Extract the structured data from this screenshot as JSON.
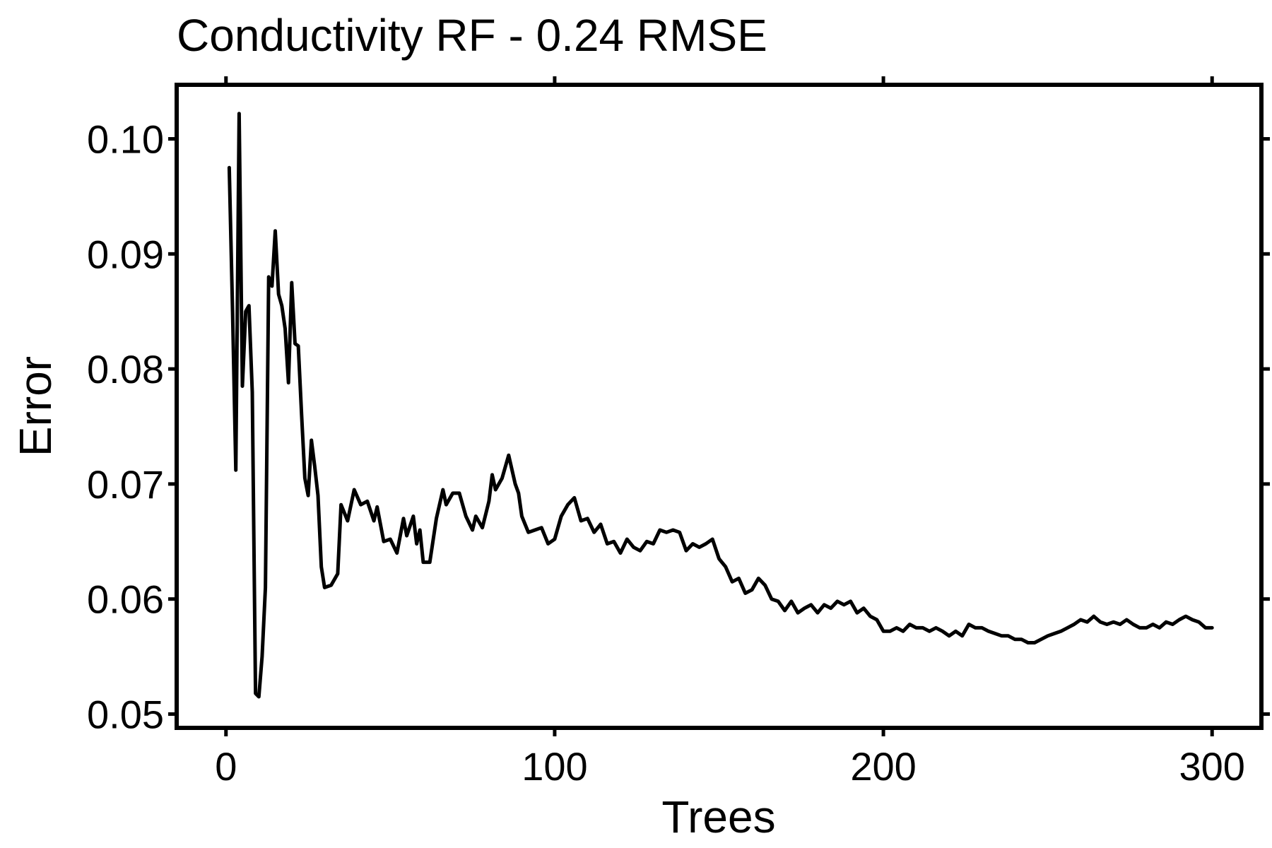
{
  "chart_data": {
    "type": "line",
    "title": "Conductivity RF - 0.24 RMSE",
    "xlabel": "Trees",
    "ylabel": "Error",
    "xlim": [
      -15,
      315
    ],
    "ylim": [
      0.0488,
      0.1047
    ],
    "x_ticks": [
      0,
      100,
      200,
      300
    ],
    "x_tick_labels": [
      "0",
      "100",
      "200",
      "300"
    ],
    "y_ticks": [
      0.05,
      0.06,
      0.07,
      0.08,
      0.09,
      0.1
    ],
    "y_tick_labels": [
      "0.05",
      "0.06",
      "0.07",
      "0.08",
      "0.09",
      "0.10"
    ],
    "grid": false,
    "series": [
      {
        "color": "#000000",
        "points": [
          [
            1,
            0.0975
          ],
          [
            2,
            0.085
          ],
          [
            3,
            0.0712
          ],
          [
            4,
            0.1022
          ],
          [
            5,
            0.0785
          ],
          [
            6,
            0.085
          ],
          [
            7,
            0.0855
          ],
          [
            8,
            0.078
          ],
          [
            9,
            0.0518
          ],
          [
            10,
            0.0515
          ],
          [
            11,
            0.055
          ],
          [
            12,
            0.061
          ],
          [
            13,
            0.088
          ],
          [
            14,
            0.0872
          ],
          [
            15,
            0.092
          ],
          [
            16,
            0.0865
          ],
          [
            17,
            0.0855
          ],
          [
            18,
            0.0835
          ],
          [
            19,
            0.0788
          ],
          [
            20,
            0.0875
          ],
          [
            21,
            0.0822
          ],
          [
            22,
            0.082
          ],
          [
            23,
            0.076
          ],
          [
            24,
            0.0705
          ],
          [
            25,
            0.069
          ],
          [
            26,
            0.0738
          ],
          [
            27,
            0.0715
          ],
          [
            28,
            0.069
          ],
          [
            29,
            0.0628
          ],
          [
            30,
            0.061
          ],
          [
            32,
            0.0612
          ],
          [
            34,
            0.0622
          ],
          [
            35,
            0.0682
          ],
          [
            37,
            0.0668
          ],
          [
            39,
            0.0695
          ],
          [
            41,
            0.0682
          ],
          [
            43,
            0.0685
          ],
          [
            45,
            0.0668
          ],
          [
            46,
            0.068
          ],
          [
            48,
            0.065
          ],
          [
            50,
            0.0652
          ],
          [
            52,
            0.064
          ],
          [
            54,
            0.067
          ],
          [
            55,
            0.0655
          ],
          [
            57,
            0.0672
          ],
          [
            58,
            0.0648
          ],
          [
            59,
            0.066
          ],
          [
            60,
            0.0632
          ],
          [
            62,
            0.0632
          ],
          [
            64,
            0.067
          ],
          [
            66,
            0.0695
          ],
          [
            67,
            0.0682
          ],
          [
            69,
            0.0692
          ],
          [
            71,
            0.0692
          ],
          [
            73,
            0.0672
          ],
          [
            75,
            0.066
          ],
          [
            76,
            0.0672
          ],
          [
            78,
            0.0662
          ],
          [
            80,
            0.0685
          ],
          [
            81,
            0.0708
          ],
          [
            82,
            0.0695
          ],
          [
            84,
            0.0705
          ],
          [
            86,
            0.0725
          ],
          [
            88,
            0.07
          ],
          [
            89,
            0.0692
          ],
          [
            90,
            0.0672
          ],
          [
            92,
            0.0658
          ],
          [
            94,
            0.066
          ],
          [
            96,
            0.0662
          ],
          [
            98,
            0.0648
          ],
          [
            100,
            0.0652
          ],
          [
            102,
            0.0672
          ],
          [
            104,
            0.0682
          ],
          [
            106,
            0.0688
          ],
          [
            108,
            0.0668
          ],
          [
            110,
            0.067
          ],
          [
            112,
            0.0658
          ],
          [
            114,
            0.0665
          ],
          [
            116,
            0.0648
          ],
          [
            118,
            0.065
          ],
          [
            120,
            0.064
          ],
          [
            122,
            0.0652
          ],
          [
            124,
            0.0645
          ],
          [
            126,
            0.0642
          ],
          [
            128,
            0.065
          ],
          [
            130,
            0.0648
          ],
          [
            132,
            0.066
          ],
          [
            134,
            0.0658
          ],
          [
            136,
            0.066
          ],
          [
            138,
            0.0658
          ],
          [
            140,
            0.0642
          ],
          [
            142,
            0.0648
          ],
          [
            144,
            0.0645
          ],
          [
            146,
            0.0648
          ],
          [
            148,
            0.0652
          ],
          [
            150,
            0.0635
          ],
          [
            152,
            0.0628
          ],
          [
            154,
            0.0615
          ],
          [
            156,
            0.0618
          ],
          [
            158,
            0.0605
          ],
          [
            160,
            0.0608
          ],
          [
            162,
            0.0618
          ],
          [
            164,
            0.0612
          ],
          [
            166,
            0.06
          ],
          [
            168,
            0.0598
          ],
          [
            170,
            0.059
          ],
          [
            172,
            0.0598
          ],
          [
            174,
            0.0588
          ],
          [
            176,
            0.0592
          ],
          [
            178,
            0.0595
          ],
          [
            180,
            0.0588
          ],
          [
            182,
            0.0595
          ],
          [
            184,
            0.0592
          ],
          [
            186,
            0.0598
          ],
          [
            188,
            0.0595
          ],
          [
            190,
            0.0598
          ],
          [
            192,
            0.0588
          ],
          [
            194,
            0.0592
          ],
          [
            196,
            0.0585
          ],
          [
            198,
            0.0582
          ],
          [
            200,
            0.0572
          ],
          [
            202,
            0.0572
          ],
          [
            204,
            0.0575
          ],
          [
            206,
            0.0572
          ],
          [
            208,
            0.0578
          ],
          [
            210,
            0.0575
          ],
          [
            212,
            0.0575
          ],
          [
            214,
            0.0572
          ],
          [
            216,
            0.0575
          ],
          [
            218,
            0.0572
          ],
          [
            220,
            0.0568
          ],
          [
            222,
            0.0572
          ],
          [
            224,
            0.0568
          ],
          [
            226,
            0.0578
          ],
          [
            228,
            0.0575
          ],
          [
            230,
            0.0575
          ],
          [
            232,
            0.0572
          ],
          [
            234,
            0.057
          ],
          [
            236,
            0.0568
          ],
          [
            238,
            0.0568
          ],
          [
            240,
            0.0565
          ],
          [
            242,
            0.0565
          ],
          [
            244,
            0.0562
          ],
          [
            246,
            0.0562
          ],
          [
            248,
            0.0565
          ],
          [
            250,
            0.0568
          ],
          [
            252,
            0.057
          ],
          [
            254,
            0.0572
          ],
          [
            256,
            0.0575
          ],
          [
            258,
            0.0578
          ],
          [
            260,
            0.0582
          ],
          [
            262,
            0.058
          ],
          [
            264,
            0.0585
          ],
          [
            266,
            0.058
          ],
          [
            268,
            0.0578
          ],
          [
            270,
            0.058
          ],
          [
            272,
            0.0578
          ],
          [
            274,
            0.0582
          ],
          [
            276,
            0.0578
          ],
          [
            278,
            0.0575
          ],
          [
            280,
            0.0575
          ],
          [
            282,
            0.0578
          ],
          [
            284,
            0.0575
          ],
          [
            286,
            0.058
          ],
          [
            288,
            0.0578
          ],
          [
            290,
            0.0582
          ],
          [
            292,
            0.0585
          ],
          [
            294,
            0.0582
          ],
          [
            296,
            0.058
          ],
          [
            298,
            0.0575
          ],
          [
            300,
            0.0575
          ]
        ]
      }
    ]
  }
}
